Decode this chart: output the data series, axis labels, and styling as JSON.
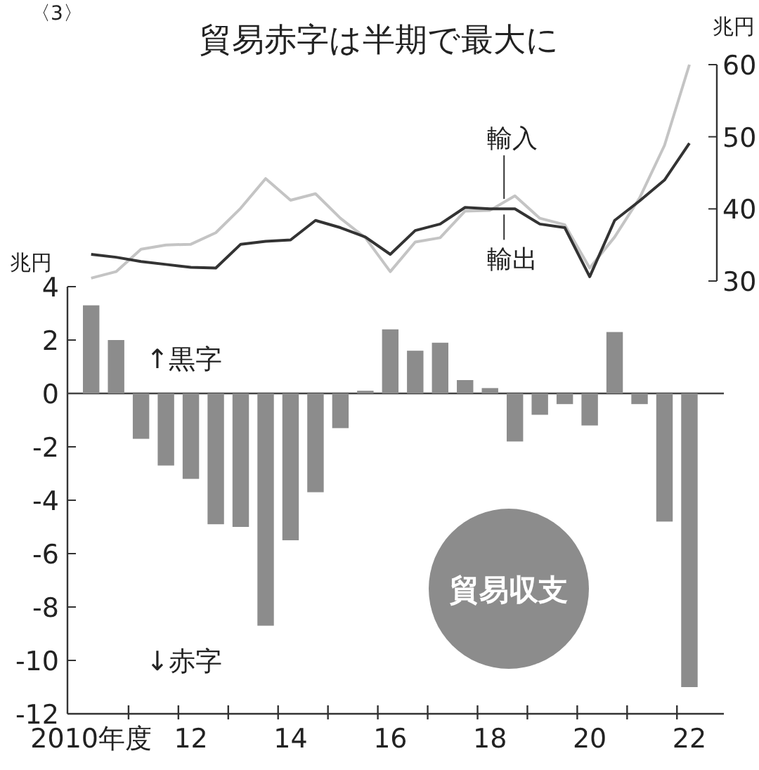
{
  "chart_data": [
    {
      "type": "line",
      "title": "貿易赤字は半期で最大に",
      "ylabel": "兆円",
      "annotations": [
        "〈3〉"
      ],
      "categories": [
        null,
        null,
        null,
        null,
        null,
        null,
        null,
        null,
        null,
        null,
        null,
        null,
        null,
        null,
        null,
        null,
        null,
        null,
        null,
        null,
        null,
        null,
        null,
        null,
        null
      ],
      "series": [
        {
          "name": "輸入",
          "color": "#c4c4c4",
          "values": [
            30.4,
            31.3,
            34.4,
            35.0,
            35.1,
            36.7,
            40.1,
            44.2,
            41.2,
            42.1,
            38.7,
            36.0,
            31.3,
            35.4,
            36.0,
            39.7,
            39.8,
            41.8,
            38.7,
            37.8,
            31.8,
            36.1,
            41.5,
            48.8,
            60.0
          ]
        },
        {
          "name": "輸出",
          "color": "#333333",
          "values": [
            33.7,
            33.3,
            32.7,
            32.3,
            31.9,
            31.8,
            35.1,
            35.5,
            35.7,
            38.4,
            37.4,
            36.1,
            33.7,
            37.0,
            37.9,
            40.2,
            40.0,
            40.0,
            37.9,
            37.4,
            30.6,
            38.4,
            41.1,
            44.0,
            49.1
          ]
        }
      ],
      "ylim": [
        30,
        60
      ],
      "yticks": [
        30,
        40,
        50,
        60
      ],
      "tick_labels": "y"
    },
    {
      "type": "bar",
      "ylabel": "兆円",
      "annotations": [
        "↑黒字",
        "↓赤字",
        "貿易収支"
      ],
      "categories": [
        "2010年度",
        null,
        null,
        null,
        "12",
        null,
        null,
        null,
        "14",
        null,
        null,
        null,
        "16",
        null,
        null,
        null,
        "18",
        null,
        null,
        null,
        "20",
        null,
        null,
        null,
        "22"
      ],
      "series": [
        {
          "color": "#8c8c8c",
          "values": [
            3.3,
            2.0,
            -1.7,
            -2.7,
            -3.2,
            -4.9,
            -5.0,
            -8.7,
            -5.5,
            -3.7,
            -1.3,
            0.1,
            2.4,
            1.6,
            1.9,
            0.5,
            0.2,
            -1.8,
            -0.8,
            -0.4,
            -1.2,
            2.3,
            -0.4,
            -4.8,
            -11.0
          ]
        }
      ],
      "ylim": [
        -12,
        4
      ],
      "yticks": [
        -12,
        -10,
        -8,
        -6,
        -4,
        -2,
        0,
        2,
        4
      ]
    }
  ]
}
